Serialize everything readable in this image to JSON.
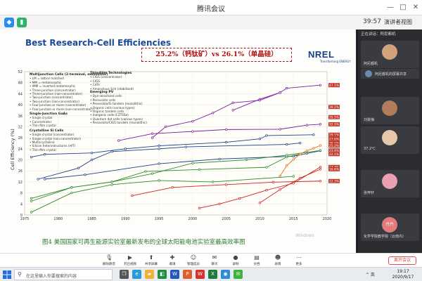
{
  "window": {
    "title": "腾讯会议",
    "minimize_icon": "minimize-icon",
    "maximize_icon": "maximize-icon",
    "close_icon": "close-icon"
  },
  "meeting_top": {
    "clock": "39:57",
    "view_label": "演讲者视图"
  },
  "slide": {
    "chart_title": "Best Research-Cell Efficiencies",
    "callout": "25.2%（钙钛矿）vs 26.1%（单晶硅）",
    "logo": "NREL",
    "logo_sub": "Transforming ENERGY",
    "caption": "图4  美国国家可再生能源实验室最新发布的全球太阳能电池实验室最高效率图",
    "watermark": "Windows",
    "legend": {
      "multijunction_header": "Multijunction Cells (2-terminal, monolithic)",
      "multijunction_items": [
        "LM = lattice matched",
        "MM = metamorphic",
        "IMM = inverted metamorphic",
        "Three-junction (concentrator)",
        "Three-junction (non-concentrator)",
        "Two-junction (concentrator)",
        "Two-junction (non-concentrator)",
        "Four-junction or more (concentrator)",
        "Four-junction or more (non-concentrator)"
      ],
      "single_gaas_header": "Single-Junction GaAs",
      "single_gaas_items": [
        "Single crystal",
        "Concentrator",
        "Thin-film crystal"
      ],
      "crystalline_si_header": "Crystalline Si Cells",
      "crystalline_si_items": [
        "Single crystal (concentrator)",
        "Single crystal (non-concentrator)",
        "Multicrystalline",
        "Silicon heterostructures (HIT)",
        "Thin-film crystal"
      ],
      "thin_film_header": "Thin-Film Technologies",
      "thin_film_items": [
        "CIGS (concentrator)",
        "CIGS",
        "CdTe",
        "Amorphous Si:H (stabilized)"
      ],
      "emerging_header": "Emerging PV",
      "emerging_items": [
        "Dye-sensitized cells",
        "Perovskite cells",
        "Perovskite/Si tandem (monolithic)",
        "Organic cells (various types)",
        "Organic tandem cells",
        "Inorganic cells (CZTSSe)",
        "Quantum dot cells (various types)",
        "Perovskite/CIGS tandem (monolithic)"
      ]
    }
  },
  "chart_data": {
    "type": "line",
    "title": "Best Research-Cell Efficiencies",
    "xlabel": "",
    "ylabel": "Cell Efficiency (%)",
    "xlim": [
      1975,
      2020
    ],
    "ylim": [
      0,
      52
    ],
    "x_ticks": [
      "1975",
      "1980",
      "1985",
      "1990",
      "1995",
      "2000",
      "2005",
      "2010",
      "2015",
      "2020"
    ],
    "y_ticks": [
      "0",
      "4",
      "8",
      "12",
      "16",
      "20",
      "24",
      "28",
      "32",
      "36",
      "40",
      "44",
      "48",
      "52"
    ],
    "series": [
      {
        "name": "Four-junction or more (concentrator)",
        "color": "#7a1fa2",
        "x": [
          2006,
          2010,
          2013,
          2014,
          2019
        ],
        "y": [
          38.0,
          42.0,
          44.4,
          46.0,
          47.1
        ]
      },
      {
        "name": "Three-junction (concentrator)",
        "color": "#7a1fa2",
        "x": [
          1994,
          1996,
          2000,
          2003,
          2006,
          2010,
          2013
        ],
        "y": [
          28.0,
          32.0,
          34.0,
          37.0,
          40.7,
          41.6,
          44.4
        ]
      },
      {
        "name": "Two-junction (non-concentrator)",
        "color": "#7a1fa2",
        "x": [
          1989,
          1994,
          2000,
          2005,
          2013,
          2017,
          2019
        ],
        "y": [
          27.0,
          29.5,
          30.3,
          31.0,
          31.1,
          32.6,
          32.9
        ]
      },
      {
        "name": "Single crystal GaAs",
        "color": "#1a3f8a",
        "x": [
          1976,
          1978,
          1985,
          1990,
          1995,
          2005,
          2010,
          2011,
          2018
        ],
        "y": [
          21.0,
          22.0,
          22.5,
          24.0,
          25.1,
          26.4,
          27.6,
          28.8,
          29.1
        ]
      },
      {
        "name": "Crystalline Si (single crystal)",
        "color": "#1a3f8a",
        "x": [
          1977,
          1983,
          1985,
          1988,
          1995,
          1999,
          2014,
          2016
        ],
        "y": [
          13.0,
          17.0,
          20.0,
          23.0,
          24.0,
          24.7,
          25.6,
          26.1
        ]
      },
      {
        "name": "Multicrystalline Si",
        "color": "#1a3f8a",
        "x": [
          1978,
          1984,
          1995,
          2004,
          2015,
          2017,
          2019
        ],
        "y": [
          13.0,
          14.6,
          18.6,
          20.3,
          21.3,
          22.3,
          23.3
        ]
      },
      {
        "name": "CIGS",
        "color": "#2e8b2e",
        "x": [
          1976,
          1982,
          1988,
          1994,
          2000,
          2008,
          2014,
          2019
        ],
        "y": [
          6.0,
          10.0,
          12.0,
          15.0,
          18.8,
          20.0,
          21.7,
          23.4
        ]
      },
      {
        "name": "CdTe",
        "color": "#2e8b2e",
        "x": [
          1976,
          1982,
          1988,
          1993,
          2001,
          2011,
          2014,
          2016
        ],
        "y": [
          5.0,
          10.0,
          12.0,
          15.8,
          16.5,
          17.3,
          21.0,
          22.1
        ]
      },
      {
        "name": "Amorphous Si:H",
        "color": "#2e8b2e",
        "x": [
          1976,
          1982,
          1988,
          1995,
          2003,
          2015
        ],
        "y": [
          1.0,
          8.0,
          11.0,
          12.5,
          12.0,
          14.0
        ]
      },
      {
        "name": "Perovskite cells",
        "color": "#e06a10",
        "x": [
          2013,
          2014,
          2015,
          2016,
          2017,
          2018,
          2019
        ],
        "y": [
          14.1,
          17.9,
          20.1,
          22.1,
          23.3,
          24.2,
          25.2
        ]
      },
      {
        "name": "Organic cells",
        "color": "#d02020",
        "x": [
          2001,
          2004,
          2007,
          2011,
          2015,
          2019
        ],
        "y": [
          2.5,
          4.0,
          6.0,
          9.0,
          11.5,
          17.4
        ]
      },
      {
        "name": "Dye-sensitized cells",
        "color": "#d02020",
        "x": [
          1991,
          1997,
          2005,
          2012,
          2019
        ],
        "y": [
          7.0,
          10.0,
          11.0,
          11.9,
          12.3
        ]
      },
      {
        "name": "Quantum dot cells",
        "color": "#d02020",
        "x": [
          2010,
          2013,
          2016,
          2019
        ],
        "y": [
          4.4,
          9.2,
          13.4,
          16.6
        ]
      }
    ],
    "right_labels": [
      "47.1%",
      "39.2%",
      "35.5%",
      "32.9%",
      "29.1%",
      "28.0%",
      "27.6%",
      "26.1%",
      "25.2%",
      "23.4%",
      "22.1%",
      "17.4%",
      "16.6%",
      "12.3%"
    ],
    "right_label_values": [
      47.1,
      39.2,
      35.5,
      32.9,
      29.1,
      28.0,
      27.6,
      26.1,
      25.2,
      23.4,
      22.1,
      17.4,
      16.6,
      12.3
    ]
  },
  "panel": {
    "header": "正在讲话：阿尼都机",
    "speaking_name": "阿尼都机的屏幕共享",
    "participants": [
      {
        "name": "阿尼都机"
      },
      {
        "name": "刘景梅"
      },
      {
        "name": "37.2℃"
      },
      {
        "name": "张梓轩"
      },
      {
        "name": "化学学院教学院（云南内）",
        "avatar_text": "丹丹"
      }
    ]
  },
  "controls": {
    "items": [
      {
        "label": "解除静音",
        "icon": "microphone-icon"
      },
      {
        "label": "开启视频",
        "icon": "video-icon"
      },
      {
        "label": "共享屏幕",
        "icon": "share-screen-icon"
      },
      {
        "label": "邀请",
        "icon": "invite-icon"
      },
      {
        "label": "管理成员",
        "icon": "members-icon"
      },
      {
        "label": "聊天",
        "icon": "chat-icon"
      },
      {
        "label": "录制",
        "icon": "record-icon"
      },
      {
        "label": "文档",
        "icon": "document-icon"
      },
      {
        "label": "表情",
        "icon": "emoji-icon"
      },
      {
        "label": "更多",
        "icon": "more-icon"
      }
    ],
    "leave_label": "离开会议"
  },
  "taskbar": {
    "search_placeholder": "在这里输入你要搜索的内容",
    "time": "19:17",
    "date": "2020/9/17",
    "tray": "^ 英"
  }
}
